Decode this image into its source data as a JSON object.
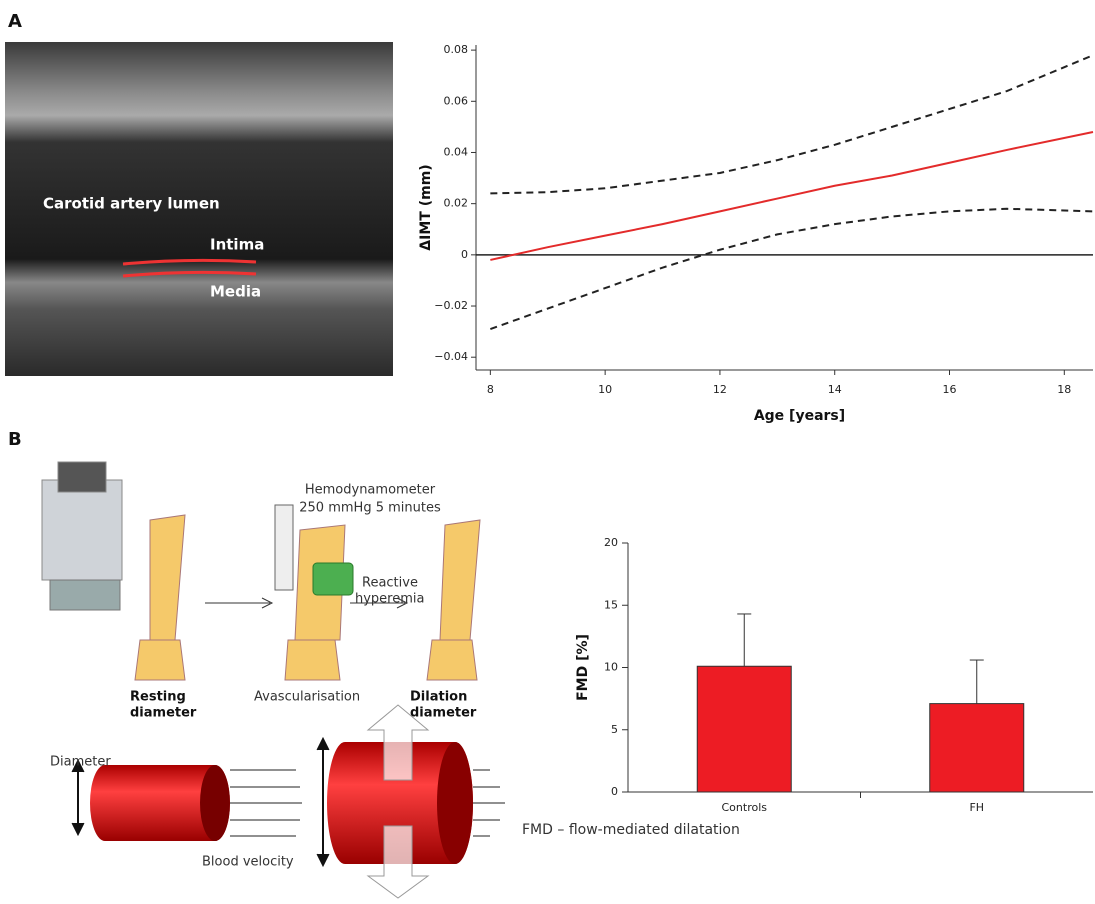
{
  "panels": {
    "a": "A",
    "b": "B"
  },
  "ultrasound": {
    "lumen": "Carotid artery lumen",
    "intima": "Intima",
    "media": "Media"
  },
  "diagram": {
    "device": "Hemodynamometer",
    "pressure": "250 mmHg 5 minutes",
    "reactive": "Reactive",
    "hyperemia": "hyperemia",
    "resting1": "Resting",
    "resting2": "diameter",
    "avasc": "Avascularisation",
    "dilation1": "Dilation",
    "dilation2": "diameter",
    "diameter": "Diameter",
    "velocity": "Blood velocity",
    "caption": "FMD – flow-mediated dilatation"
  },
  "chart_data": [
    {
      "type": "line",
      "xlabel": "Age [years]",
      "ylabel": "ΔIMT (mm)",
      "x": [
        8,
        9,
        10,
        11,
        12,
        13,
        14,
        15,
        16,
        17,
        18.5
      ],
      "series": [
        {
          "color": "#e32b2b",
          "style": "solid",
          "values": [
            -0.002,
            0.003,
            0.0075,
            0.012,
            0.017,
            0.022,
            0.027,
            0.031,
            0.036,
            0.041,
            0.048
          ]
        },
        {
          "color": "#222222",
          "style": "dashed",
          "values": [
            0.024,
            0.0245,
            0.026,
            0.029,
            0.032,
            0.037,
            0.043,
            0.05,
            0.057,
            0.064,
            0.078
          ]
        },
        {
          "color": "#222222",
          "style": "dashed",
          "values": [
            -0.029,
            -0.021,
            -0.013,
            -0.005,
            0.002,
            0.008,
            0.012,
            0.015,
            0.017,
            0.018,
            0.017
          ]
        }
      ],
      "hline": 0,
      "xlim": [
        7.75,
        18.5
      ],
      "ylim": [
        -0.045,
        0.082
      ],
      "xticks": [
        8,
        10,
        12,
        14,
        16,
        18
      ],
      "yticks": [
        {
          "value": -0.04,
          "label": "−0.04"
        },
        {
          "value": -0.02,
          "label": "−0.02"
        },
        0,
        0.02,
        0.04,
        0.06,
        0.08
      ]
    },
    {
      "type": "bar",
      "ylabel": "FMD [%]",
      "categories": [
        "Controls",
        "FH"
      ],
      "values": [
        10.1,
        7.1
      ],
      "errors": [
        4.2,
        3.5
      ],
      "color": "#ed1c24",
      "ylim": [
        0,
        20
      ],
      "yticks": [
        0,
        5,
        10,
        15,
        20
      ]
    }
  ]
}
